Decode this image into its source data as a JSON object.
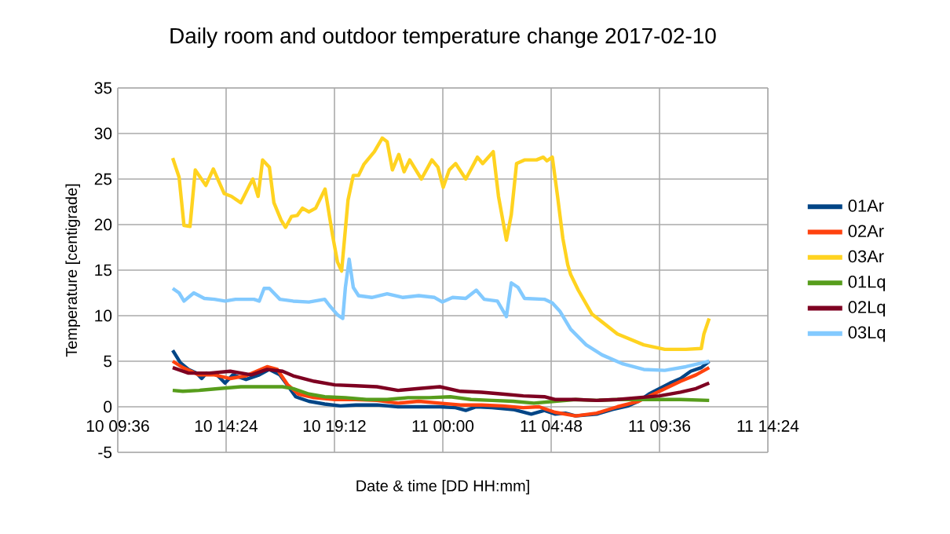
{
  "chart_data": {
    "type": "line",
    "title": "Daily room and outdoor temperature change 2017-02-10",
    "xlabel": "Date & time [DD HH:mm]",
    "ylabel": "Temperature [centigrade]",
    "xlim": [
      "2017-02-10T09:36",
      "2017-02-11T14:24"
    ],
    "xticks": [
      {
        "value": "2017-02-10T09:36",
        "label": "10 09:36"
      },
      {
        "value": "2017-02-10T14:24",
        "label": "10 14:24"
      },
      {
        "value": "2017-02-10T19:12",
        "label": "10 19:12"
      },
      {
        "value": "2017-02-11T00:00",
        "label": "11 00:00"
      },
      {
        "value": "2017-02-11T04:48",
        "label": "11 04:48"
      },
      {
        "value": "2017-02-11T09:36",
        "label": "11 09:36"
      },
      {
        "value": "2017-02-11T14:24",
        "label": "11 14:24"
      }
    ],
    "ylim": [
      -5,
      35
    ],
    "yticks": [
      -5,
      0,
      5,
      10,
      15,
      20,
      25,
      30,
      35
    ],
    "grid": true,
    "legend": "right",
    "line_style": "solid",
    "series": [
      {
        "name": "01Ar",
        "color": "#004586",
        "x": [
          "2017-02-10T12:02",
          "2017-02-10T12:23",
          "2017-02-10T12:44",
          "2017-02-10T13:05",
          "2017-02-10T13:19",
          "2017-02-10T13:32",
          "2017-02-10T14:00",
          "2017-02-10T14:21",
          "2017-02-10T14:42",
          "2017-02-10T15:17",
          "2017-02-10T15:52",
          "2017-02-10T16:19",
          "2017-02-10T16:47",
          "2017-02-10T17:08",
          "2017-02-10T17:29",
          "2017-02-10T18:04",
          "2017-02-10T18:46",
          "2017-02-10T19:28",
          "2017-02-10T20:09",
          "2017-02-10T21:05",
          "2017-02-10T22:01",
          "2017-02-10T22:56",
          "2017-02-10T23:52",
          "2017-02-11T00:34",
          "2017-02-11T01:01",
          "2017-02-11T01:29",
          "2017-02-11T02:11",
          "2017-02-11T03:07",
          "2017-02-11T03:55",
          "2017-02-11T04:30",
          "2017-02-11T04:58",
          "2017-02-11T05:26",
          "2017-02-11T05:53",
          "2017-02-11T06:49",
          "2017-02-11T07:31",
          "2017-02-11T08:13",
          "2017-02-11T08:40",
          "2017-02-11T09:08",
          "2017-02-11T09:36",
          "2017-02-11T10:04",
          "2017-02-11T10:32",
          "2017-02-11T10:59",
          "2017-02-11T11:27",
          "2017-02-11T11:48"
        ],
        "values": [
          6.2,
          4.8,
          4.1,
          3.7,
          3.1,
          3.7,
          3.5,
          2.6,
          3.5,
          3.0,
          3.5,
          4.1,
          3.5,
          2.3,
          1.1,
          0.6,
          0.3,
          0.1,
          0.2,
          0.2,
          0.0,
          0.0,
          0.0,
          -0.1,
          -0.4,
          0.0,
          -0.1,
          -0.3,
          -0.8,
          -0.4,
          -0.8,
          -0.7,
          -1.0,
          -0.8,
          -0.3,
          0.1,
          0.6,
          1.4,
          2.0,
          2.6,
          3.1,
          3.9,
          4.3,
          5.0
        ]
      },
      {
        "name": "02Ar",
        "color": "#ff420e",
        "x": [
          "2017-02-10T12:02",
          "2017-02-10T12:29",
          "2017-02-10T13:12",
          "2017-02-10T13:53",
          "2017-02-10T14:35",
          "2017-02-10T15:17",
          "2017-02-10T16:13",
          "2017-02-10T16:40",
          "2017-02-10T17:08",
          "2017-02-10T17:36",
          "2017-02-10T18:18",
          "2017-02-10T19:13",
          "2017-02-10T20:09",
          "2017-02-10T21:05",
          "2017-02-10T22:01",
          "2017-02-10T22:56",
          "2017-02-10T23:52",
          "2017-02-11T00:47",
          "2017-02-11T01:43",
          "2017-02-11T02:38",
          "2017-02-11T03:34",
          "2017-02-11T04:16",
          "2017-02-11T04:58",
          "2017-02-11T05:53",
          "2017-02-11T06:49",
          "2017-02-11T07:44",
          "2017-02-11T08:40",
          "2017-02-11T09:36",
          "2017-02-11T10:32",
          "2017-02-11T11:13",
          "2017-02-11T11:48"
        ],
        "values": [
          5.0,
          4.3,
          3.5,
          3.5,
          3.1,
          3.4,
          4.4,
          4.1,
          2.4,
          1.4,
          1.0,
          0.8,
          0.8,
          0.7,
          0.4,
          0.6,
          0.4,
          0.2,
          0.2,
          0.1,
          -0.1,
          0.0,
          -0.6,
          -1.0,
          -0.7,
          0.0,
          0.6,
          1.7,
          2.8,
          3.5,
          4.3
        ]
      },
      {
        "name": "03Ar",
        "color": "#ffd320",
        "x": [
          "2017-02-10T12:02",
          "2017-02-10T12:19",
          "2017-02-10T12:32",
          "2017-02-10T12:48",
          "2017-02-10T13:02",
          "2017-02-10T13:30",
          "2017-02-10T13:50",
          "2017-02-10T14:19",
          "2017-02-10T14:38",
          "2017-02-10T15:03",
          "2017-02-10T15:26",
          "2017-02-10T15:35",
          "2017-02-10T15:49",
          "2017-02-10T16:01",
          "2017-02-10T16:19",
          "2017-02-10T16:31",
          "2017-02-10T16:50",
          "2017-02-10T17:02",
          "2017-02-10T17:18",
          "2017-02-10T17:33",
          "2017-02-10T17:47",
          "2017-02-10T18:04",
          "2017-02-10T18:22",
          "2017-02-10T18:47",
          "2017-02-10T19:07",
          "2017-02-10T19:20",
          "2017-02-10T19:31",
          "2017-02-10T19:48",
          "2017-02-10T20:02",
          "2017-02-10T20:16",
          "2017-02-10T20:30",
          "2017-02-10T20:58",
          "2017-02-10T21:19",
          "2017-02-10T21:32",
          "2017-02-10T21:46",
          "2017-02-10T22:03",
          "2017-02-10T22:17",
          "2017-02-10T22:32",
          "2017-02-10T23:03",
          "2017-02-10T23:31",
          "2017-02-10T23:47",
          "2017-02-11T00:01",
          "2017-02-11T00:17",
          "2017-02-11T00:34",
          "2017-02-11T01:01",
          "2017-02-11T01:32",
          "2017-02-11T01:46",
          "2017-02-11T02:14",
          "2017-02-11T02:28",
          "2017-02-11T02:49",
          "2017-02-11T03:02",
          "2017-02-11T03:16",
          "2017-02-11T03:37",
          "2017-02-11T04:09",
          "2017-02-11T04:27",
          "2017-02-11T04:37",
          "2017-02-11T04:51",
          "2017-02-11T05:05",
          "2017-02-11T05:19",
          "2017-02-11T05:32",
          "2017-02-11T05:40",
          "2017-02-11T06:00",
          "2017-02-11T06:36",
          "2017-02-11T07:44",
          "2017-02-11T08:54",
          "2017-02-11T09:50",
          "2017-02-11T10:46",
          "2017-02-11T11:27",
          "2017-02-11T11:34",
          "2017-02-11T11:48"
        ],
        "values": [
          27.3,
          25.2,
          19.9,
          19.8,
          26.0,
          24.3,
          26.1,
          23.4,
          23.1,
          22.4,
          24.3,
          25.0,
          23.1,
          27.1,
          26.3,
          22.4,
          20.5,
          19.7,
          20.9,
          21.0,
          21.8,
          21.4,
          21.8,
          23.9,
          18.8,
          15.9,
          14.9,
          22.7,
          25.4,
          25.4,
          26.6,
          28.0,
          29.5,
          29.1,
          26.0,
          27.7,
          25.8,
          27.1,
          25.0,
          27.1,
          26.3,
          24.1,
          26.0,
          26.7,
          25.0,
          27.4,
          26.7,
          28.0,
          23.1,
          18.3,
          21.1,
          26.7,
          27.1,
          27.1,
          27.4,
          27.0,
          27.4,
          23.1,
          18.5,
          15.6,
          14.5,
          12.8,
          10.2,
          8.0,
          6.8,
          6.3,
          6.3,
          6.4,
          8.0,
          9.7
        ]
      },
      {
        "name": "01Lq",
        "color": "#579d1c",
        "x": [
          "2017-02-10T12:02",
          "2017-02-10T12:29",
          "2017-02-10T13:12",
          "2017-02-10T14:07",
          "2017-02-10T15:03",
          "2017-02-10T15:59",
          "2017-02-10T16:54",
          "2017-02-10T17:22",
          "2017-02-10T18:04",
          "2017-02-10T18:46",
          "2017-02-10T19:41",
          "2017-02-10T20:37",
          "2017-02-10T21:32",
          "2017-02-10T22:28",
          "2017-02-10T23:24",
          "2017-02-11T00:20",
          "2017-02-11T01:15",
          "2017-02-11T02:11",
          "2017-02-11T03:07",
          "2017-02-11T04:02",
          "2017-02-11T04:58",
          "2017-02-11T05:53",
          "2017-02-11T06:49",
          "2017-02-11T07:44",
          "2017-02-11T08:40",
          "2017-02-11T09:36",
          "2017-02-11T10:32",
          "2017-02-11T11:48"
        ],
        "values": [
          1.8,
          1.7,
          1.8,
          2.0,
          2.2,
          2.2,
          2.2,
          2.0,
          1.4,
          1.1,
          1.0,
          0.8,
          0.8,
          1.0,
          1.0,
          1.1,
          0.8,
          0.7,
          0.6,
          0.4,
          0.6,
          0.8,
          0.7,
          0.8,
          0.8,
          0.8,
          0.8,
          0.7
        ]
      },
      {
        "name": "02Lq",
        "color": "#7e0021",
        "x": [
          "2017-02-10T12:02",
          "2017-02-10T12:44",
          "2017-02-10T13:40",
          "2017-02-10T14:35",
          "2017-02-10T15:31",
          "2017-02-10T16:13",
          "2017-02-10T16:54",
          "2017-02-10T17:22",
          "2017-02-10T18:18",
          "2017-02-10T19:13",
          "2017-02-10T20:09",
          "2017-02-10T21:05",
          "2017-02-10T22:01",
          "2017-02-10T22:56",
          "2017-02-10T23:52",
          "2017-02-11T00:47",
          "2017-02-11T01:43",
          "2017-02-11T02:38",
          "2017-02-11T03:34",
          "2017-02-11T04:30",
          "2017-02-11T04:58",
          "2017-02-11T05:53",
          "2017-02-11T06:49",
          "2017-02-11T07:44",
          "2017-02-11T08:40",
          "2017-02-11T09:36",
          "2017-02-11T10:32",
          "2017-02-11T11:13",
          "2017-02-11T11:48"
        ],
        "values": [
          4.3,
          3.7,
          3.7,
          3.9,
          3.5,
          4.1,
          3.9,
          3.4,
          2.8,
          2.4,
          2.3,
          2.2,
          1.8,
          2.0,
          2.2,
          1.7,
          1.6,
          1.4,
          1.2,
          1.1,
          0.8,
          0.8,
          0.7,
          0.8,
          1.0,
          1.2,
          1.6,
          2.0,
          2.6
        ]
      },
      {
        "name": "03Lq",
        "color": "#83caff",
        "x": [
          "2017-02-10T12:02",
          "2017-02-10T12:19",
          "2017-02-10T12:32",
          "2017-02-10T12:58",
          "2017-02-10T13:26",
          "2017-02-10T13:53",
          "2017-02-10T14:21",
          "2017-02-10T14:49",
          "2017-02-10T15:17",
          "2017-02-10T15:38",
          "2017-02-10T15:52",
          "2017-02-10T16:05",
          "2017-02-10T16:19",
          "2017-02-10T16:47",
          "2017-02-10T17:22",
          "2017-02-10T18:04",
          "2017-02-10T18:46",
          "2017-02-10T18:59",
          "2017-02-10T19:20",
          "2017-02-10T19:34",
          "2017-02-10T19:41",
          "2017-02-10T19:51",
          "2017-02-10T20:02",
          "2017-02-10T20:16",
          "2017-02-10T20:51",
          "2017-02-10T21:32",
          "2017-02-10T22:14",
          "2017-02-10T22:56",
          "2017-02-10T23:38",
          "2017-02-10T23:59",
          "2017-02-11T00:26",
          "2017-02-11T01:01",
          "2017-02-11T01:29",
          "2017-02-11T01:50",
          "2017-02-11T02:25",
          "2017-02-11T02:49",
          "2017-02-11T03:02",
          "2017-02-11T03:20",
          "2017-02-11T03:37",
          "2017-02-11T04:30",
          "2017-02-11T04:51",
          "2017-02-11T05:11",
          "2017-02-11T05:40",
          "2017-02-11T06:21",
          "2017-02-11T07:03",
          "2017-02-11T07:59",
          "2017-02-11T08:54",
          "2017-02-11T09:50",
          "2017-02-11T10:46",
          "2017-02-11T11:27",
          "2017-02-11T11:48"
        ],
        "values": [
          13.0,
          12.5,
          11.6,
          12.5,
          11.9,
          11.8,
          11.6,
          11.8,
          11.8,
          11.8,
          11.6,
          13.0,
          13.0,
          11.8,
          11.6,
          11.5,
          11.8,
          11.1,
          10.1,
          9.7,
          13.1,
          16.2,
          13.1,
          12.2,
          12.0,
          12.4,
          12.0,
          12.2,
          12.0,
          11.5,
          12.0,
          11.9,
          12.8,
          11.8,
          11.6,
          9.9,
          13.6,
          13.1,
          11.9,
          11.8,
          11.4,
          10.5,
          8.5,
          6.8,
          5.7,
          4.7,
          4.1,
          4.0,
          4.4,
          4.8,
          5.0
        ]
      }
    ]
  }
}
